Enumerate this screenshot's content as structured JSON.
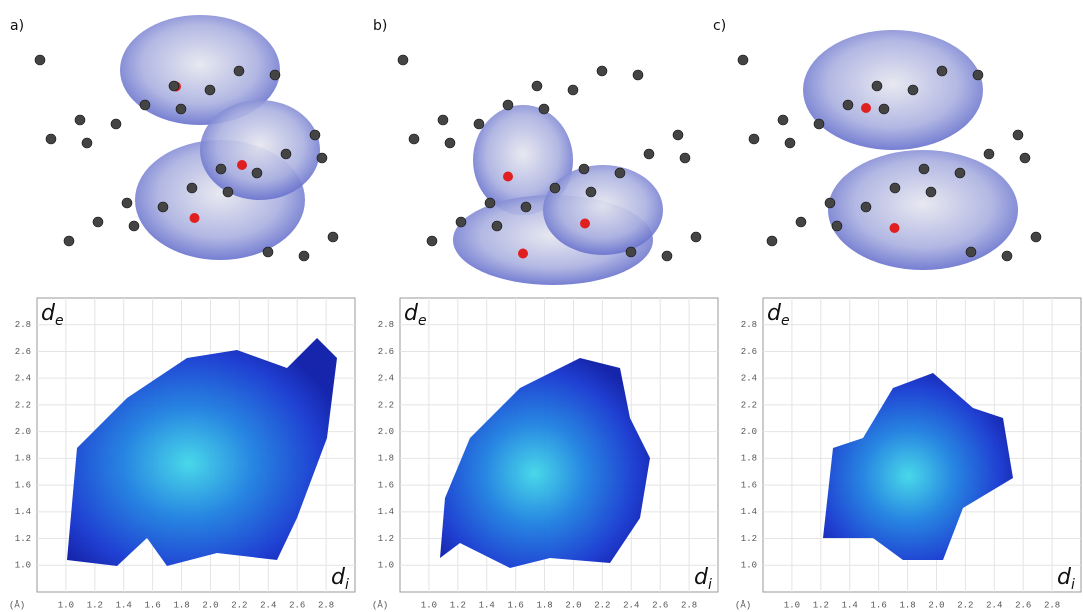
{
  "panels": [
    {
      "label": "a)",
      "plot": {
        "y_label": "d",
        "y_label_sub": "e",
        "x_label": "d",
        "x_label_sub": "i",
        "unit": "(Å)",
        "xlim": [
          0.8,
          3.0
        ],
        "ylim": [
          0.8,
          3.0
        ],
        "xticks": [
          {
            "value": 1,
            "label": "1.0"
          },
          1.2,
          1.4,
          1.6,
          1.8,
          {
            "value": 2,
            "label": "2.0"
          },
          2.2,
          2.4,
          2.6,
          2.8
        ],
        "yticks": [
          {
            "value": 1,
            "label": "1.0"
          },
          1.2,
          1.4,
          1.6,
          1.8,
          {
            "value": 2,
            "label": "2.0"
          },
          2.2,
          2.4,
          2.6,
          2.8
        ]
      }
    },
    {
      "label": "b)",
      "plot": {
        "y_label": "d",
        "y_label_sub": "e",
        "x_label": "d",
        "x_label_sub": "i",
        "unit": "(Å)",
        "xlim": [
          0.8,
          3.0
        ],
        "ylim": [
          0.8,
          3.0
        ],
        "xticks": [
          {
            "value": 1,
            "label": "1.0"
          },
          1.2,
          1.4,
          1.6,
          1.8,
          {
            "value": 2,
            "label": "2.0"
          },
          2.2,
          2.4,
          2.6,
          2.8
        ],
        "yticks": [
          {
            "value": 1,
            "label": "1.0"
          },
          1.2,
          1.4,
          1.6,
          1.8,
          {
            "value": 2,
            "label": "2.0"
          },
          2.2,
          2.4,
          2.6,
          2.8
        ]
      }
    },
    {
      "label": "c)",
      "plot": {
        "y_label": "d",
        "y_label_sub": "e",
        "x_label": "d",
        "x_label_sub": "i",
        "unit": "(Å)",
        "xlim": [
          0.8,
          3.0
        ],
        "ylim": [
          0.8,
          3.0
        ],
        "xticks": [
          {
            "value": 1,
            "label": "1.0"
          },
          1.2,
          1.4,
          1.6,
          1.8,
          {
            "value": 2,
            "label": "2.0"
          },
          2.2,
          2.4,
          2.6,
          2.8
        ],
        "yticks": [
          {
            "value": 1,
            "label": "1.0"
          },
          1.2,
          1.4,
          1.6,
          1.8,
          {
            "value": 2,
            "label": "2.0"
          },
          2.2,
          2.4,
          2.6,
          2.8
        ]
      }
    }
  ]
}
